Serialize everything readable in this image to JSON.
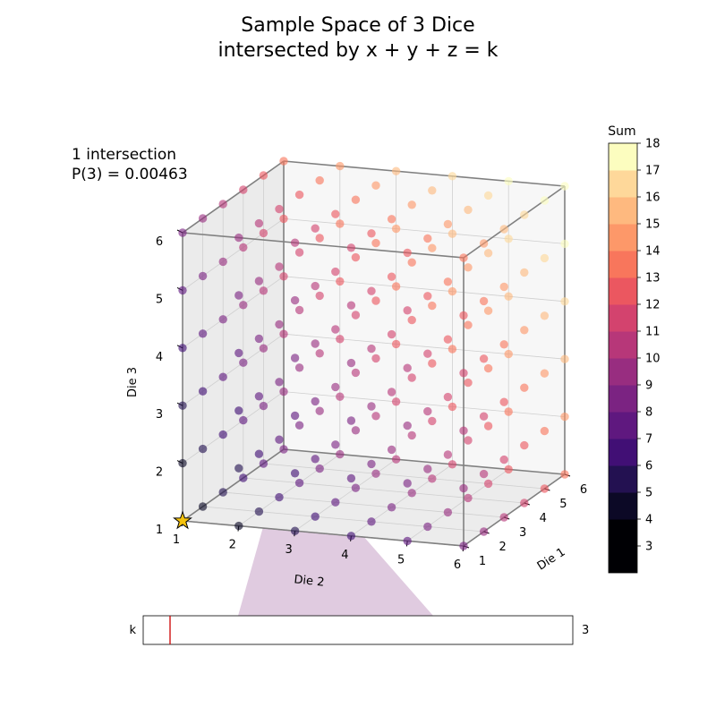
{
  "chart_data": {
    "type": "scatter",
    "title_lines": [
      "Sample Space of 3 Dice",
      "intersected by x + y + z = k"
    ],
    "xlabel": "Die 1",
    "ylabel": "Die 2",
    "zlabel": "Die 3",
    "x_ticks": [
      "1",
      "2",
      "3",
      "4",
      "5",
      "6"
    ],
    "y_ticks": [
      "1",
      "2",
      "3",
      "4",
      "5",
      "6"
    ],
    "z_ticks": [
      "1",
      "2",
      "3",
      "4",
      "5",
      "6"
    ],
    "points": "all 216 outcomes (x, y, z) with x, y, z in 1..6, colored by sum x+y+z",
    "die_values": [
      1,
      2,
      3,
      4,
      5,
      6
    ],
    "highlight_points": [
      [
        1,
        1,
        1
      ]
    ],
    "info_line1": "1 intersection",
    "info_line2": "P(3) = 0.00463",
    "colorbar": {
      "label": "Sum",
      "ticks": [
        "3",
        "4",
        "5",
        "6",
        "7",
        "8",
        "9",
        "10",
        "11",
        "12",
        "13",
        "14",
        "15",
        "16",
        "17",
        "18"
      ],
      "colors": [
        "#000004",
        "#0c0926",
        "#231151",
        "#410f75",
        "#5f187f",
        "#7b2382",
        "#982d80",
        "#b73779",
        "#d3436e",
        "#eb5760",
        "#f8765c",
        "#fd9869",
        "#feb97f",
        "#fed89a",
        "#fcfdbf"
      ]
    },
    "slider": {
      "label": "k",
      "min": 3,
      "max": 18,
      "value": 3,
      "value_text": "3"
    }
  }
}
